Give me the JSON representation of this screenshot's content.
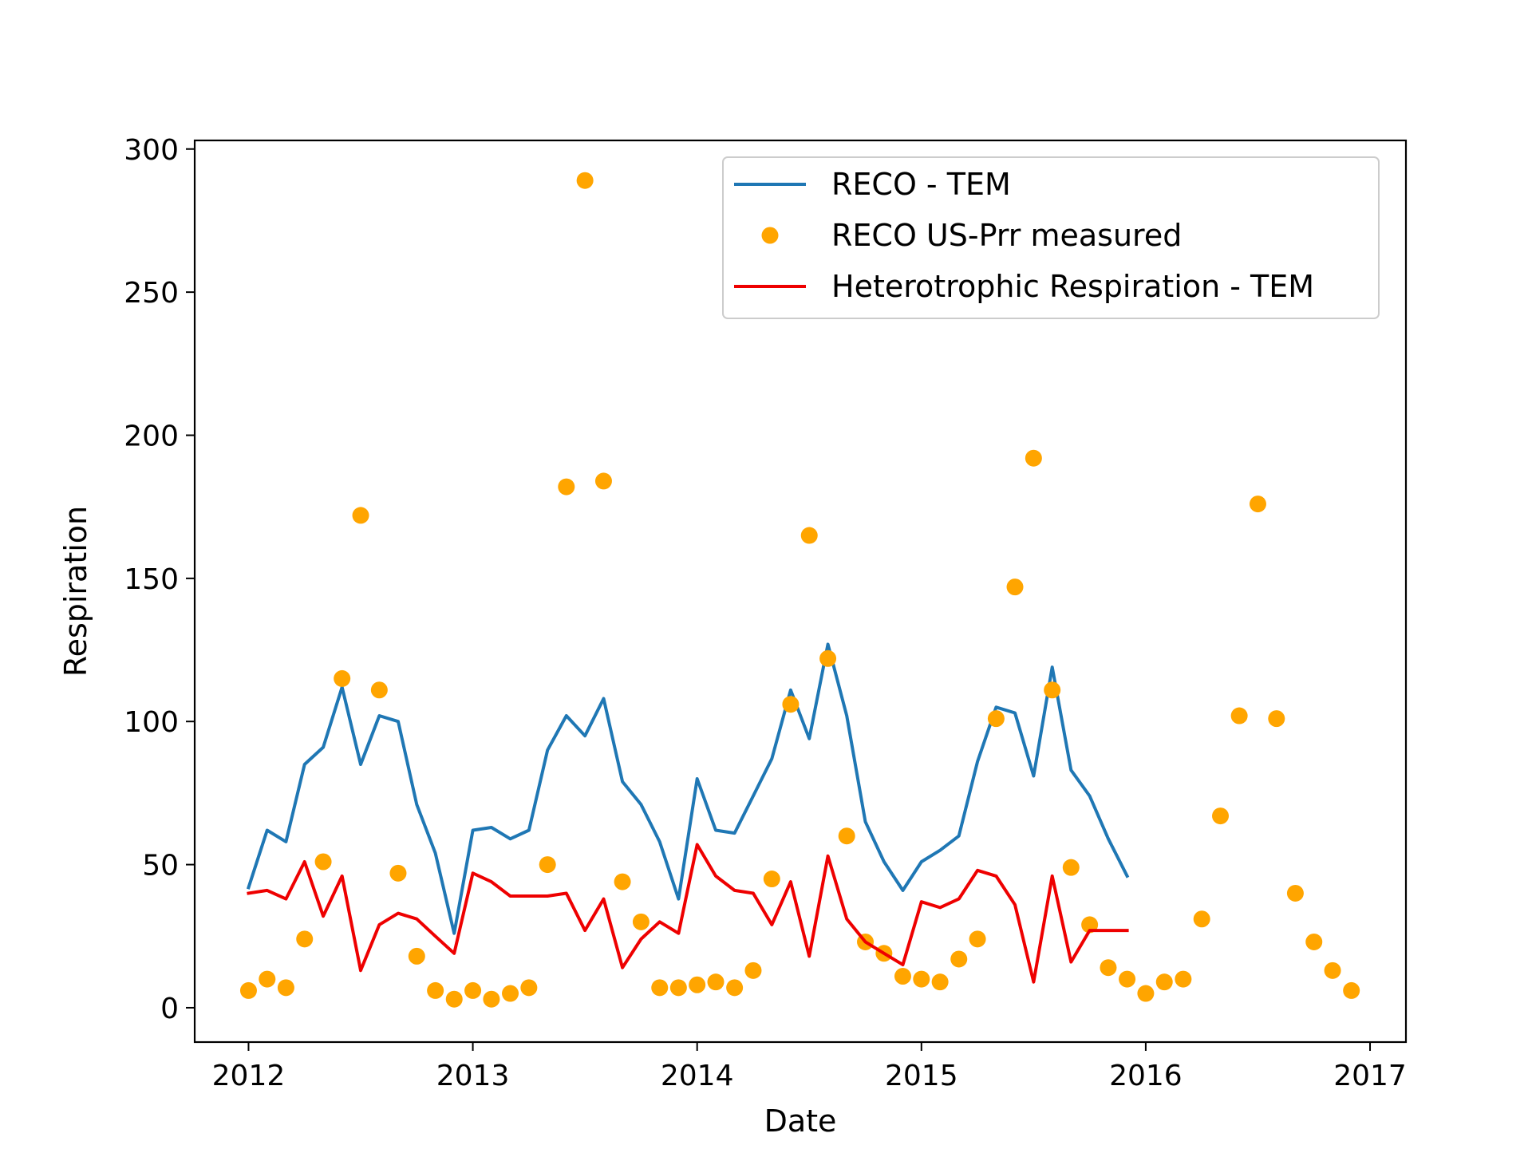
{
  "chart_data": {
    "type": "line",
    "title": "",
    "xlabel": "Date",
    "ylabel": "Respiration",
    "x_unit": "year",
    "xlim": [
      2011.76,
      2017.16
    ],
    "ylim": [
      -12,
      303
    ],
    "xticks": [
      2012,
      2013,
      2014,
      2015,
      2016,
      2017
    ],
    "xtick_labels": [
      "2012",
      "2013",
      "2014",
      "2015",
      "2016",
      "2017"
    ],
    "yticks": [
      0,
      50,
      100,
      150,
      200,
      250,
      300
    ],
    "ytick_labels": [
      "0",
      "50",
      "100",
      "150",
      "200",
      "250",
      "300"
    ],
    "grid": false,
    "legend_position": "top-right",
    "series": [
      {
        "name": "RECO - TEM",
        "kind": "line",
        "color": "#1f77b4",
        "x": [
          2012.0,
          2012.083,
          2012.167,
          2012.25,
          2012.333,
          2012.417,
          2012.5,
          2012.583,
          2012.667,
          2012.75,
          2012.833,
          2012.917,
          2013.0,
          2013.083,
          2013.167,
          2013.25,
          2013.333,
          2013.417,
          2013.5,
          2013.583,
          2013.667,
          2013.75,
          2013.833,
          2013.917,
          2014.0,
          2014.083,
          2014.167,
          2014.25,
          2014.333,
          2014.417,
          2014.5,
          2014.583,
          2014.667,
          2014.75,
          2014.833,
          2014.917,
          2015.0,
          2015.083,
          2015.167,
          2015.25,
          2015.333,
          2015.417,
          2015.5,
          2015.583,
          2015.667,
          2015.75,
          2015.833,
          2015.917
        ],
        "y": [
          42,
          62,
          58,
          85,
          91,
          112,
          85,
          102,
          100,
          71,
          54,
          26,
          62,
          63,
          59,
          62,
          90,
          102,
          95,
          108,
          79,
          71,
          58,
          38,
          80,
          62,
          61,
          74,
          87,
          111,
          94,
          127,
          102,
          65,
          51,
          41,
          51,
          55,
          60,
          86,
          105,
          103,
          81,
          119,
          83,
          74,
          59,
          46
        ]
      },
      {
        "name": "RECO US-Prr measured",
        "kind": "scatter",
        "color": "#ffa500",
        "x": [
          2012.0,
          2012.083,
          2012.167,
          2012.25,
          2012.333,
          2012.417,
          2012.5,
          2012.583,
          2012.667,
          2012.75,
          2012.833,
          2012.917,
          2013.0,
          2013.083,
          2013.167,
          2013.25,
          2013.333,
          2013.417,
          2013.5,
          2013.583,
          2013.667,
          2013.75,
          2013.833,
          2013.917,
          2014.0,
          2014.083,
          2014.167,
          2014.25,
          2014.333,
          2014.417,
          2014.5,
          2014.583,
          2014.667,
          2014.75,
          2014.833,
          2014.917,
          2015.0,
          2015.083,
          2015.167,
          2015.25,
          2015.333,
          2015.417,
          2015.5,
          2015.583,
          2015.667,
          2015.75,
          2015.833,
          2015.917,
          2016.0,
          2016.083,
          2016.167,
          2016.25,
          2016.333,
          2016.417,
          2016.5,
          2016.583,
          2016.667,
          2016.75,
          2016.833,
          2016.917
        ],
        "y": [
          6,
          10,
          7,
          24,
          51,
          115,
          172,
          111,
          47,
          18,
          6,
          3,
          6,
          3,
          5,
          7,
          50,
          182,
          289,
          184,
          44,
          30,
          7,
          7,
          8,
          9,
          7,
          13,
          45,
          106,
          165,
          122,
          60,
          23,
          19,
          11,
          10,
          9,
          17,
          24,
          101,
          147,
          192,
          111,
          49,
          29,
          14,
          10,
          5,
          9,
          10,
          31,
          67,
          102,
          176,
          101,
          40,
          23,
          13,
          6
        ]
      },
      {
        "name": "Heterotrophic Respiration - TEM",
        "kind": "line",
        "color": "#ee0000",
        "x": [
          2012.0,
          2012.083,
          2012.167,
          2012.25,
          2012.333,
          2012.417,
          2012.5,
          2012.583,
          2012.667,
          2012.75,
          2012.833,
          2012.917,
          2013.0,
          2013.083,
          2013.167,
          2013.25,
          2013.333,
          2013.417,
          2013.5,
          2013.583,
          2013.667,
          2013.75,
          2013.833,
          2013.917,
          2014.0,
          2014.083,
          2014.167,
          2014.25,
          2014.333,
          2014.417,
          2014.5,
          2014.583,
          2014.667,
          2014.75,
          2014.833,
          2014.917,
          2015.0,
          2015.083,
          2015.167,
          2015.25,
          2015.333,
          2015.417,
          2015.5,
          2015.583,
          2015.667,
          2015.75,
          2015.833,
          2015.917
        ],
        "y": [
          40,
          41,
          38,
          51,
          32,
          46,
          13,
          29,
          33,
          31,
          25,
          19,
          47,
          44,
          39,
          39,
          39,
          40,
          27,
          38,
          14,
          24,
          30,
          26,
          57,
          46,
          41,
          40,
          29,
          44,
          18,
          53,
          31,
          23,
          19,
          15,
          37,
          35,
          38,
          48,
          46,
          36,
          9,
          46,
          16,
          27,
          27,
          27
        ]
      }
    ]
  }
}
